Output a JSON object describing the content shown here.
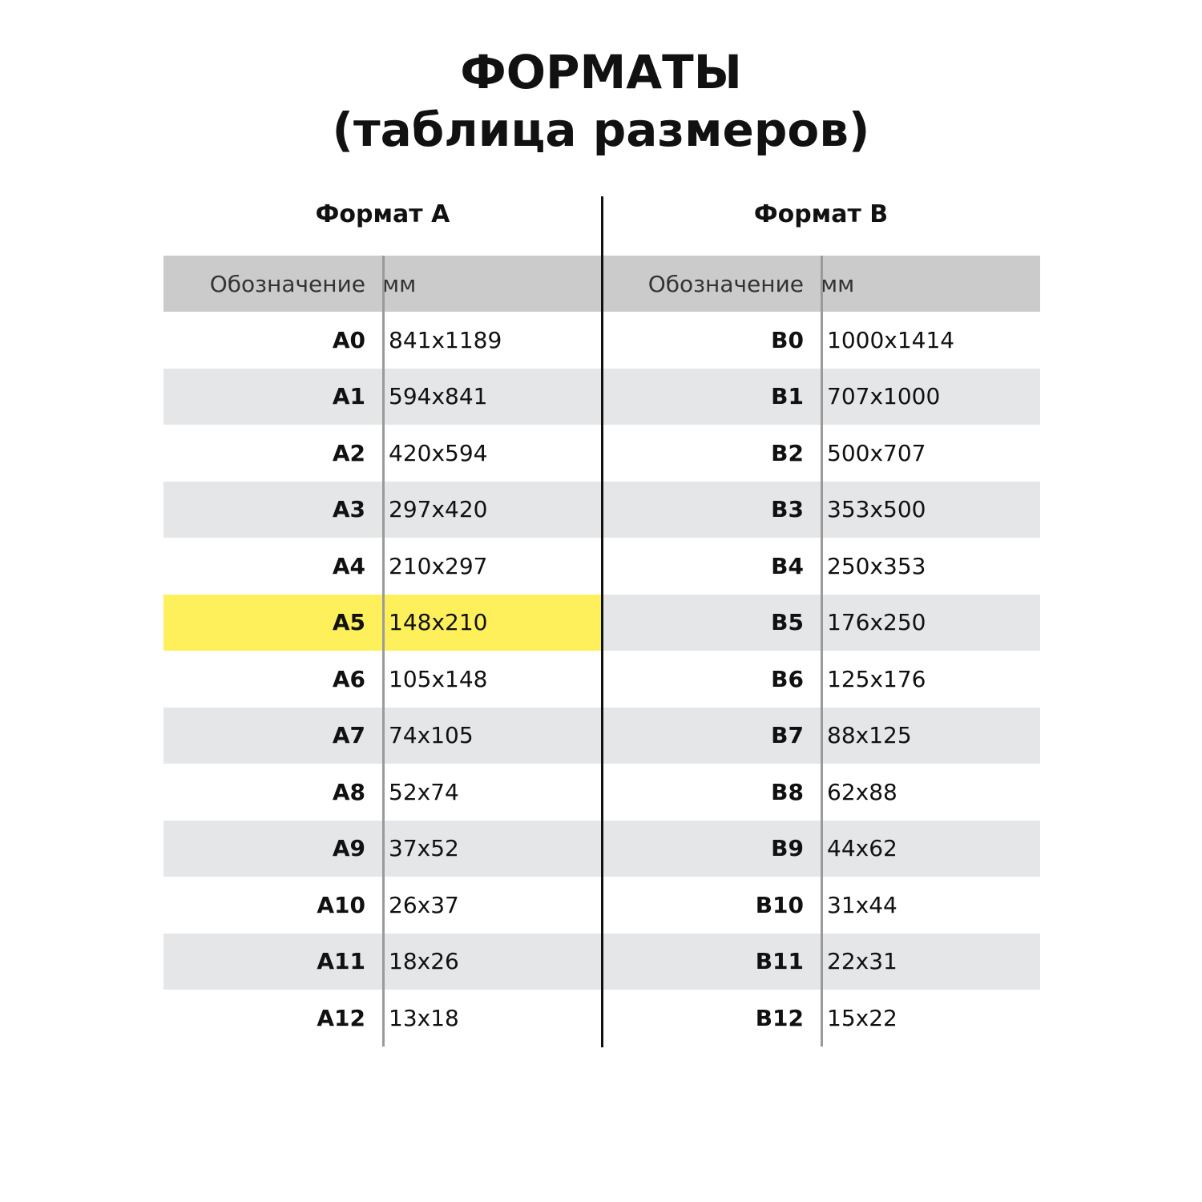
{
  "title": {
    "line1": "ФОРМАТЫ",
    "line2": "(таблица размеров)"
  },
  "colors": {
    "header_bg": "#cbcbcb",
    "alt_row_bg": "#e5e6e7",
    "highlight": "#fdf05a"
  },
  "tables": [
    {
      "heading": "Формат А",
      "columns": [
        "Обозначение",
        "мм"
      ],
      "highlighted": "A5",
      "rows": [
        [
          "A0",
          "841x1189"
        ],
        [
          "A1",
          "594x841"
        ],
        [
          "A2",
          "420x594"
        ],
        [
          "A3",
          "297x420"
        ],
        [
          "A4",
          "210x297"
        ],
        [
          "A5",
          "148x210"
        ],
        [
          "A6",
          "105x148"
        ],
        [
          "A7",
          "74x105"
        ],
        [
          "A8",
          "52x74"
        ],
        [
          "A9",
          "37x52"
        ],
        [
          "A10",
          "26x37"
        ],
        [
          "A11",
          "18x26"
        ],
        [
          "A12",
          "13x18"
        ]
      ]
    },
    {
      "heading": "Формат В",
      "columns": [
        "Обозначение",
        "мм"
      ],
      "highlighted": null,
      "rows": [
        [
          "B0",
          "1000x1414"
        ],
        [
          "B1",
          "707x1000"
        ],
        [
          "B2",
          "500x707"
        ],
        [
          "B3",
          "353x500"
        ],
        [
          "B4",
          "250x353"
        ],
        [
          "B5",
          "176x250"
        ],
        [
          "B6",
          "125x176"
        ],
        [
          "B7",
          "88x125"
        ],
        [
          "B8",
          "62x88"
        ],
        [
          "B9",
          "44x62"
        ],
        [
          "B10",
          "31x44"
        ],
        [
          "B11",
          "22x31"
        ],
        [
          "B12",
          "15x22"
        ]
      ]
    }
  ]
}
